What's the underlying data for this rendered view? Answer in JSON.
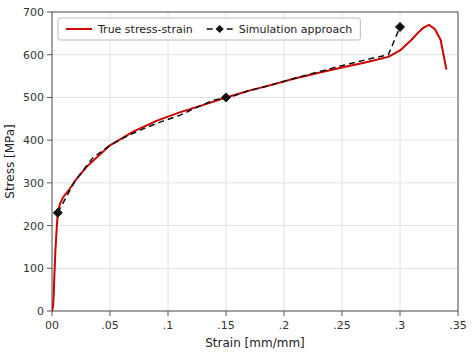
{
  "chart_data": {
    "type": "line",
    "xlabel": "Strain [mm/mm]",
    "ylabel": "Stress [MPa]",
    "xlim": [
      0,
      0.35
    ],
    "ylim": [
      0,
      700
    ],
    "xticks": [
      {
        "value": 0.0,
        "label": "00"
      },
      {
        "value": 0.05,
        "label": ".05"
      },
      {
        "value": 0.1,
        "label": ".1"
      },
      {
        "value": 0.15,
        "label": ".15"
      },
      {
        "value": 0.2,
        "label": ".2"
      },
      {
        "value": 0.25,
        "label": ".25"
      },
      {
        "value": 0.3,
        "label": ".3"
      },
      {
        "value": 0.35,
        "label": ".35"
      }
    ],
    "yticks": [
      0,
      100,
      200,
      300,
      400,
      500,
      600,
      700
    ],
    "grid": true,
    "legend": "upper left",
    "series": [
      {
        "name": "True stress-strain",
        "color": "#cc0000",
        "line_style": "solid",
        "x": [
          0.0,
          0.0005,
          0.001,
          0.0015,
          0.002,
          0.003,
          0.004,
          0.005,
          0.007,
          0.01,
          0.015,
          0.02,
          0.03,
          0.05,
          0.07,
          0.09,
          0.11,
          0.13,
          0.15,
          0.17,
          0.19,
          0.21,
          0.23,
          0.25,
          0.27,
          0.29,
          0.3,
          0.31,
          0.315,
          0.32,
          0.325,
          0.33,
          0.335,
          0.34
        ],
        "values": [
          0,
          5,
          15,
          40,
          80,
          145,
          190,
          230,
          252,
          268,
          285,
          305,
          338,
          388,
          420,
          445,
          465,
          482,
          500,
          516,
          530,
          545,
          558,
          570,
          582,
          595,
          610,
          635,
          650,
          663,
          670,
          660,
          635,
          565
        ]
      },
      {
        "name": "Simulation approach",
        "color": "#111111",
        "line_style": "dashed",
        "x": [
          0.005,
          0.02,
          0.035,
          0.05,
          0.065,
          0.08,
          0.095,
          0.11,
          0.125,
          0.14,
          0.155,
          0.17,
          0.185,
          0.2,
          0.215,
          0.23,
          0.245,
          0.26,
          0.275,
          0.29,
          0.3
        ],
        "values": [
          230,
          305,
          358,
          388,
          410,
          428,
          444,
          458,
          477,
          494,
          502,
          516,
          526,
          538,
          549,
          560,
          571,
          581,
          591,
          600,
          665
        ]
      },
      {
        "color": "#111111",
        "line_style": "none",
        "marker": "diamond",
        "x": [
          0.005,
          0.15,
          0.3
        ],
        "values": [
          230,
          500,
          665
        ]
      }
    ]
  }
}
